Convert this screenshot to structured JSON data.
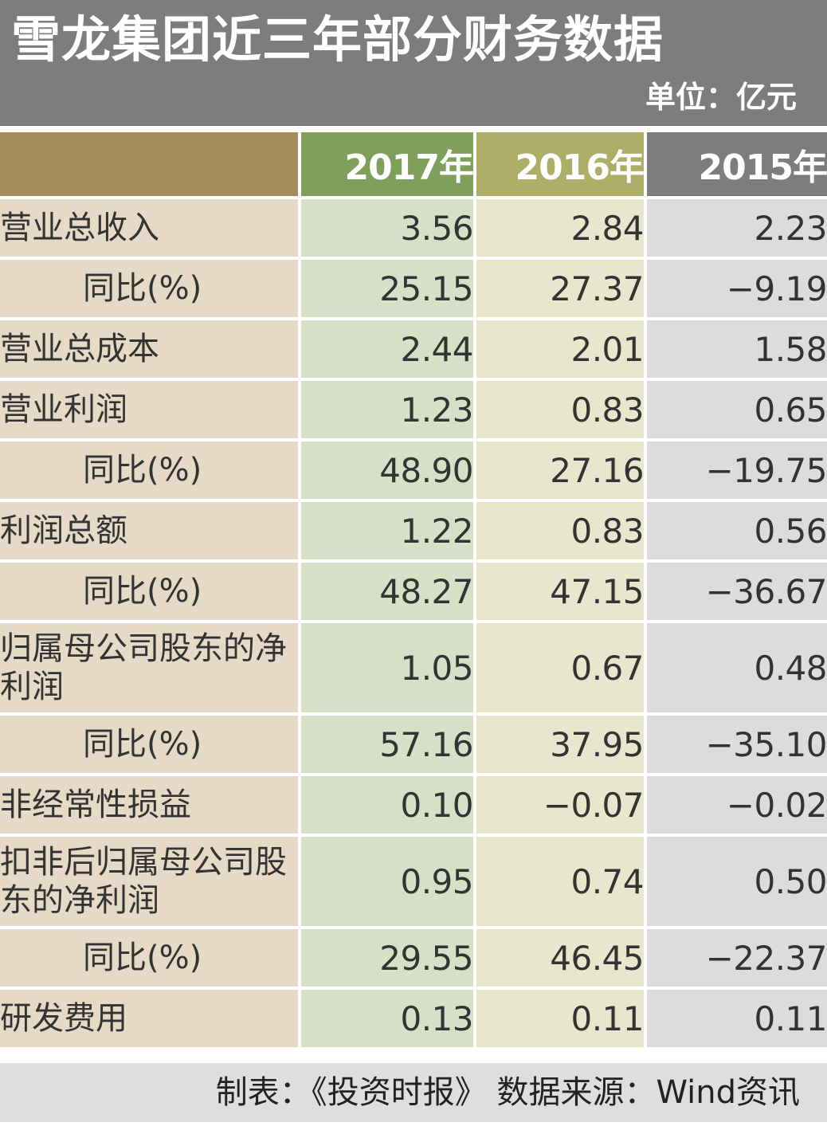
{
  "header": {
    "title": "雪龙集团近三年部分财务数据",
    "unit": "单位：亿元"
  },
  "footer": {
    "text": "制表：《投资时报》 数据来源：Wind资讯"
  },
  "colors": {
    "header_bg": "#7d7d7d",
    "label_header": "#a58c5a",
    "col_2017_header": "#7ea05a",
    "col_2016_header": "#aeae68",
    "col_2015_header": "#7d7d7d",
    "label_cell": "#e6d9c6",
    "col_2017_cell": "#d6e0c6",
    "col_2016_cell": "#e8e6cc",
    "col_2015_cell": "#dcdcdc"
  },
  "chart_data": {
    "type": "table",
    "title": "雪龙集团近三年部分财务数据",
    "unit": "单位：亿元",
    "columns": [
      "2017年",
      "2016年",
      "2015年"
    ],
    "rows": [
      {
        "label": "营业总收入",
        "sub": false,
        "values": [
          "3.56",
          "2.84",
          "2.23"
        ]
      },
      {
        "label": "同比(%)",
        "sub": true,
        "values": [
          "25.15",
          "27.37",
          "−9.19"
        ]
      },
      {
        "label": "营业总成本",
        "sub": false,
        "values": [
          "2.44",
          "2.01",
          "1.58"
        ]
      },
      {
        "label": "营业利润",
        "sub": false,
        "values": [
          "1.23",
          "0.83",
          "0.65"
        ]
      },
      {
        "label": "同比(%)",
        "sub": true,
        "values": [
          "48.90",
          "27.16",
          "−19.75"
        ]
      },
      {
        "label": "利润总额",
        "sub": false,
        "values": [
          "1.22",
          "0.83",
          "0.56"
        ]
      },
      {
        "label": "同比(%)",
        "sub": true,
        "values": [
          "48.27",
          "47.15",
          "−36.67"
        ]
      },
      {
        "label": "归属母公司股东的净利润",
        "sub": false,
        "values": [
          "1.05",
          "0.67",
          "0.48"
        ]
      },
      {
        "label": "同比(%)",
        "sub": true,
        "values": [
          "57.16",
          "37.95",
          "−35.10"
        ]
      },
      {
        "label": "非经常性损益",
        "sub": false,
        "values": [
          "0.10",
          "−0.07",
          "−0.02"
        ]
      },
      {
        "label": "扣非后归属母公司股东的净利润",
        "sub": false,
        "values": [
          "0.95",
          "0.74",
          "0.50"
        ]
      },
      {
        "label": "同比(%)",
        "sub": true,
        "values": [
          "29.55",
          "46.45",
          "−22.37"
        ]
      },
      {
        "label": "研发费用",
        "sub": false,
        "values": [
          "0.13",
          "0.11",
          "0.11"
        ]
      }
    ]
  }
}
